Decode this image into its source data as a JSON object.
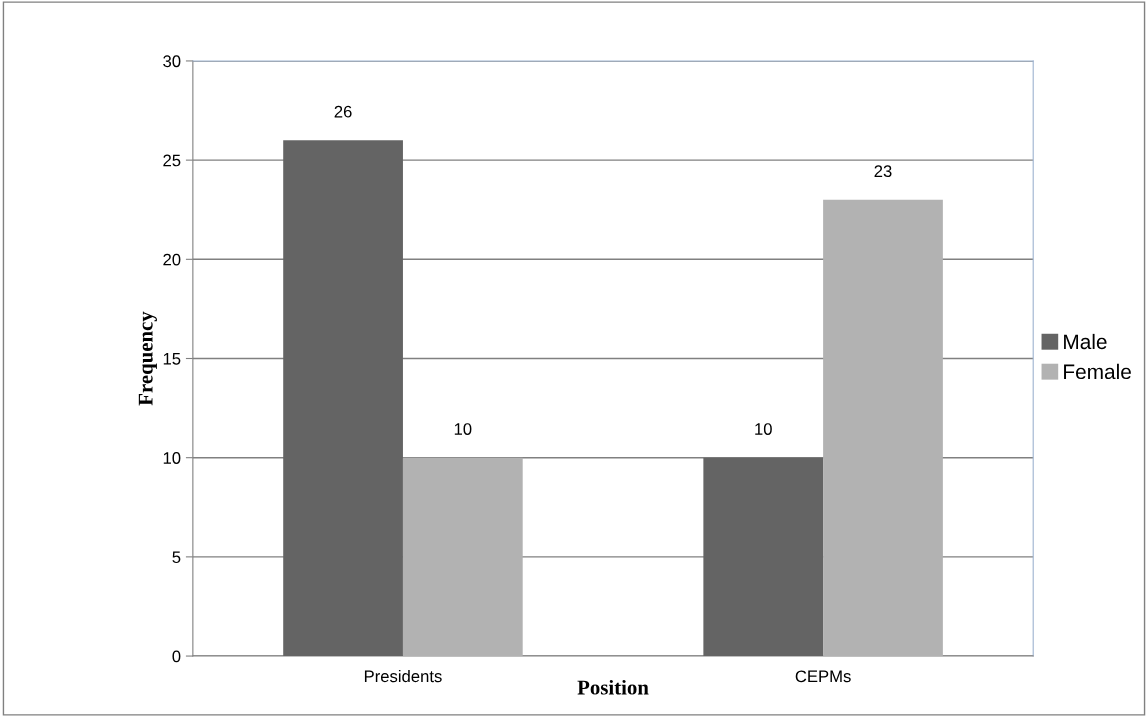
{
  "chart_data": {
    "type": "bar",
    "xlabel": "Position",
    "ylabel": "Frequency",
    "categories": [
      "Presidents",
      "CEPMs"
    ],
    "series": [
      {
        "name": "Male",
        "color": "#646464",
        "values": [
          26,
          10
        ]
      },
      {
        "name": "Female",
        "color": "#b2b2b2",
        "values": [
          10,
          23
        ]
      }
    ],
    "ylim": [
      0,
      30
    ],
    "yticks": [
      0,
      5,
      10,
      15,
      20,
      25,
      30
    ],
    "grid": "y",
    "legend": "right",
    "data_labels": true
  }
}
